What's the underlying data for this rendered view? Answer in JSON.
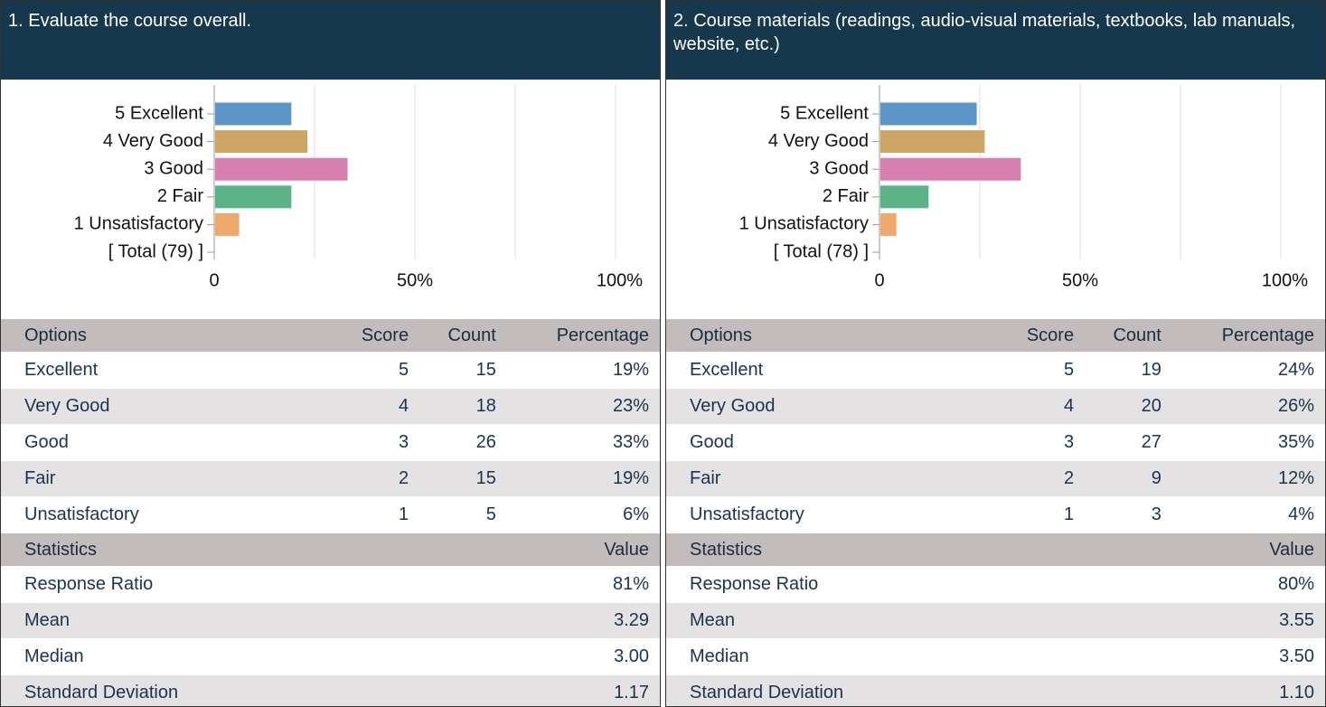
{
  "chart_data": [
    {
      "type": "bar",
      "orientation": "horizontal",
      "title": "1. Evaluate the course overall.",
      "categories": [
        "5 Excellent",
        "4 Very Good",
        "3 Good",
        "2 Fair",
        "1 Unsatisfactory",
        "[ Total (79) ]"
      ],
      "values": [
        19,
        23,
        33,
        19,
        6,
        null
      ],
      "colors": [
        "#5b96c6",
        "#cda564",
        "#d77fae",
        "#5ab487",
        "#f0a96c",
        null
      ],
      "xlim": [
        0,
        100
      ],
      "xticks": [
        0,
        {
          "value": 50,
          "label": "50%"
        },
        {
          "value": 100,
          "label": "100%"
        }
      ],
      "grid_x": [
        0,
        25,
        50,
        75,
        100
      ]
    },
    {
      "type": "bar",
      "orientation": "horizontal",
      "title": "2. Course materials (readings, audio-visual materials, textbooks, lab manuals, website, etc.)",
      "categories": [
        "5 Excellent",
        "4 Very Good",
        "3 Good",
        "2 Fair",
        "1 Unsatisfactory",
        "[ Total (78) ]"
      ],
      "values": [
        24,
        26,
        35,
        12,
        4,
        null
      ],
      "colors": [
        "#5b96c6",
        "#cda564",
        "#d77fae",
        "#5ab487",
        "#f0a96c",
        null
      ],
      "xlim": [
        0,
        100
      ],
      "xticks": [
        0,
        {
          "value": 50,
          "label": "50%"
        },
        {
          "value": 100,
          "label": "100%"
        }
      ],
      "grid_x": [
        0,
        25,
        50,
        75,
        100
      ]
    }
  ],
  "tables": [
    {
      "columns": [
        "Options",
        "Score",
        "Count",
        "Percentage"
      ],
      "rows": [
        [
          "Excellent",
          5,
          15,
          "19%"
        ],
        [
          "Very Good",
          4,
          18,
          "23%"
        ],
        [
          "Good",
          3,
          26,
          "33%"
        ],
        [
          "Fair",
          2,
          15,
          "19%"
        ],
        [
          "Unsatisfactory",
          1,
          5,
          "6%"
        ]
      ],
      "stats_columns": [
        "Statistics",
        "Value"
      ],
      "stats_rows": [
        [
          "Response Ratio",
          "81%"
        ],
        [
          "Mean",
          "3.29"
        ],
        [
          "Median",
          "3.00"
        ],
        [
          "Standard Deviation",
          "1.17"
        ]
      ]
    },
    {
      "columns": [
        "Options",
        "Score",
        "Count",
        "Percentage"
      ],
      "rows": [
        [
          "Excellent",
          5,
          19,
          "24%"
        ],
        [
          "Very Good",
          4,
          20,
          "26%"
        ],
        [
          "Good",
          3,
          27,
          "35%"
        ],
        [
          "Fair",
          2,
          9,
          "12%"
        ],
        [
          "Unsatisfactory",
          1,
          3,
          "4%"
        ]
      ],
      "stats_columns": [
        "Statistics",
        "Value"
      ],
      "stats_rows": [
        [
          "Response Ratio",
          "80%"
        ],
        [
          "Mean",
          "3.55"
        ],
        [
          "Median",
          "3.50"
        ],
        [
          "Standard Deviation",
          "1.10"
        ]
      ]
    }
  ]
}
